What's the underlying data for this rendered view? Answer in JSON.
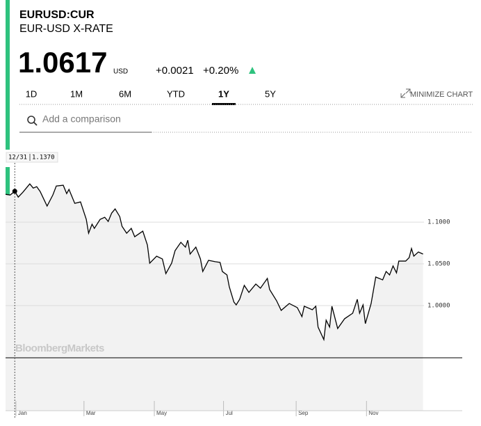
{
  "header": {
    "ticker": "EURUSD:CUR",
    "name": "EUR-USD X-RATE",
    "price": "1.0617",
    "currency": "USD",
    "change": "+0.0021",
    "change_pct": "+0.20%"
  },
  "tabs": {
    "items": [
      "1D",
      "1M",
      "6M",
      "YTD",
      "1Y",
      "5Y"
    ],
    "active": 4,
    "minimize": "MINIMIZE CHART"
  },
  "search": {
    "placeholder": "Add a comparison"
  },
  "hover": {
    "date": "12/31",
    "value": "1.1370"
  },
  "watermark": "BloombergMarkets",
  "chart_data": {
    "type": "line",
    "color": "#000000",
    "x": [
      -8,
      -4,
      0,
      3,
      7,
      13,
      16,
      19,
      22,
      28,
      33,
      36,
      42,
      45,
      47,
      52,
      57,
      62,
      64,
      67,
      69,
      74,
      78,
      81,
      84,
      87,
      91,
      93,
      97,
      101,
      104,
      111,
      115,
      117,
      123,
      128,
      131,
      136,
      139,
      144,
      148,
      150,
      152,
      157,
      161,
      163,
      168,
      174,
      178,
      180,
      184,
      186,
      190,
      192,
      195,
      199,
      203,
      209,
      213,
      219,
      221,
      227,
      231,
      238,
      245,
      249,
      251,
      258,
      261,
      263,
      268,
      270,
      273,
      275,
      280,
      286,
      293,
      297,
      299,
      302,
      304,
      309,
      313,
      319,
      322,
      325,
      328,
      331,
      333,
      339,
      342,
      344,
      346,
      350,
      354
    ],
    "values": [
      1.1333,
      1.1325,
      1.137,
      1.13,
      1.1358,
      1.1458,
      1.1408,
      1.1425,
      1.1367,
      1.1192,
      1.1325,
      1.1433,
      1.1442,
      1.1342,
      1.1392,
      1.1225,
      1.1242,
      1.1033,
      1.0867,
      1.0975,
      1.0925,
      1.1033,
      1.1058,
      1.1008,
      1.1108,
      1.1158,
      1.1067,
      1.095,
      1.0867,
      1.0925,
      1.0825,
      1.0892,
      1.0725,
      1.0508,
      1.0592,
      1.0558,
      1.0383,
      1.0508,
      1.0658,
      1.0758,
      1.07,
      1.0783,
      1.0617,
      1.07,
      1.0558,
      1.0408,
      1.0542,
      1.0525,
      1.0517,
      1.0408,
      1.0367,
      1.0225,
      1.0042,
      1.0008,
      1.0075,
      1.0242,
      1.0158,
      1.0258,
      1.0208,
      1.0325,
      1.0192,
      1.0058,
      0.9942,
      1.0025,
      0.9975,
      0.9867,
      0.9992,
      0.995,
      0.9992,
      0.9742,
      0.9592,
      0.9825,
      0.9742,
      0.9992,
      0.9725,
      0.9842,
      0.9908,
      1.0075,
      0.9908,
      1.0008,
      0.9783,
      1.0025,
      1.0342,
      1.0308,
      1.0408,
      1.0367,
      1.0475,
      1.0392,
      1.0533,
      1.0533,
      1.0575,
      1.0683,
      1.0592,
      1.0642,
      1.0617
    ],
    "xlim": [
      -8,
      388
    ],
    "ylim": [
      0.874,
      1.181
    ],
    "xticks": [
      {
        "value": 1,
        "label": "Jan"
      },
      {
        "value": 60,
        "label": "Mar"
      },
      {
        "value": 121,
        "label": "May"
      },
      {
        "value": 181,
        "label": "Jul"
      },
      {
        "value": 244,
        "label": "Sep"
      },
      {
        "value": 305,
        "label": "Nov"
      }
    ],
    "yticks": [
      {
        "value": 1.0,
        "label": "1.0000"
      },
      {
        "value": 1.05,
        "label": "1.0500"
      },
      {
        "value": 1.1,
        "label": "1.1000"
      }
    ],
    "grid": true
  }
}
